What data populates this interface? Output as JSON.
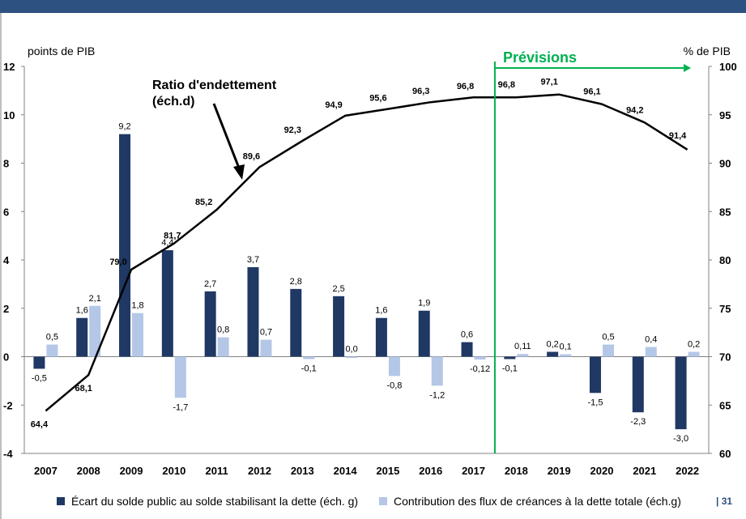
{
  "chart_data": {
    "type": "bar",
    "categories": [
      "2007",
      "2008",
      "2009",
      "2010",
      "2011",
      "2012",
      "2013",
      "2014",
      "2015",
      "2016",
      "2017",
      "2018",
      "2019",
      "2020",
      "2021",
      "2022"
    ],
    "series": [
      {
        "name": "Écart du solde public au solde stabilisant la dette (éch. g)",
        "kind": "bar",
        "axis": "left",
        "color": "#1f3864",
        "values": [
          -0.5,
          1.6,
          9.2,
          4.4,
          2.7,
          3.7,
          2.8,
          2.5,
          1.6,
          1.9,
          0.6,
          -0.1,
          0.2,
          -1.5,
          -2.3,
          -3.0
        ],
        "labels": [
          "-0,5",
          "1,6",
          "9,2",
          "4,4",
          "2,7",
          "3,7",
          "2,8",
          "2,5",
          "1,6",
          "1,9",
          "0,6",
          "-0,1",
          "0,2",
          "-1,5",
          "-2,3",
          "-3,0"
        ]
      },
      {
        "name": "Contribution des flux de créances à la dette totale (éch.g)",
        "kind": "bar",
        "axis": "left",
        "color": "#b4c7e7",
        "values": [
          0.5,
          2.1,
          1.8,
          -1.7,
          0.8,
          0.7,
          -0.1,
          0.0,
          -0.8,
          -1.2,
          -0.12,
          0.11,
          0.1,
          0.5,
          0.4,
          0.2
        ],
        "labels": [
          "0,5",
          "2,1",
          "1,8",
          "-1,7",
          "0,8",
          "0,7",
          "-0,1",
          "0,0",
          "-0,8",
          "-1,2",
          "-0,12",
          "0,11",
          "0,1",
          "0,5",
          "0,4",
          "0,2"
        ]
      },
      {
        "name": "",
        "kind": "line",
        "axis": "right",
        "color": "#000000",
        "values": [
          64.4,
          68.1,
          79.0,
          81.7,
          85.2,
          89.6,
          92.3,
          94.9,
          95.6,
          96.3,
          96.8,
          96.8,
          97.1,
          96.1,
          94.2,
          91.4
        ],
        "labels": [
          "64,4",
          "68,1",
          "79,0",
          "81,7",
          "85,2",
          "89,6",
          "92,3",
          "94,9",
          "95,6",
          "96,3",
          "96,8",
          "96,8",
          "97,1",
          "96,1",
          "94,2",
          "91,4"
        ]
      }
    ],
    "left_axis": {
      "label": "points de PIB",
      "min": -4,
      "max": 12,
      "ticks": [
        -4,
        -2,
        0,
        2,
        4,
        6,
        8,
        10,
        12
      ],
      "tick_labels": [
        "-4",
        "-2",
        "0",
        "2",
        "4",
        "6",
        "8",
        "10",
        "12"
      ]
    },
    "right_axis": {
      "label": "% de PIB",
      "min": 60,
      "max": 100,
      "ticks": [
        60,
        65,
        70,
        75,
        80,
        85,
        90,
        95,
        100
      ],
      "tick_labels": [
        "60",
        "65",
        "70",
        "75",
        "80",
        "85",
        "90",
        "95",
        "100"
      ]
    },
    "annotations": {
      "line_label": [
        "Ratio d'endettement",
        "(éch.d)"
      ],
      "forecast_label": "Prévisions",
      "forecast_start_category": "2018",
      "forecast_color": "#00b050"
    },
    "grid": false,
    "legend_position": "bottom"
  },
  "page_number": "31"
}
